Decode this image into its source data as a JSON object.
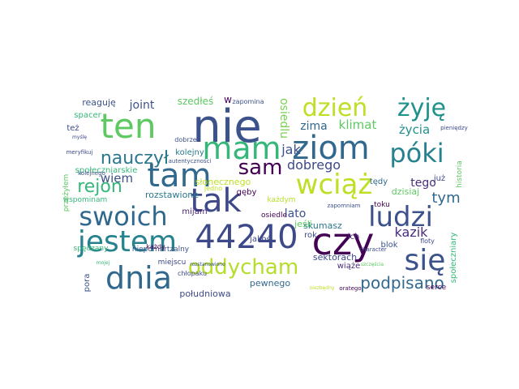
{
  "words": [
    {
      "text": "nie",
      "color": "#3b528b"
    },
    {
      "text": "ten",
      "color": "#5ec962"
    },
    {
      "text": "tam",
      "color": "#31688e"
    },
    {
      "text": "mam",
      "color": "#35b779"
    },
    {
      "text": "ziom",
      "color": "#31688e"
    },
    {
      "text": "tak",
      "color": "#3e4989"
    },
    {
      "text": "czy",
      "color": "#440154"
    },
    {
      "text": "44240",
      "color": "#3e4989"
    },
    {
      "text": "jestem",
      "color": "#26828e"
    },
    {
      "text": "dnia",
      "color": "#31688e"
    },
    {
      "text": "się",
      "color": "#3b528b"
    },
    {
      "text": "ludzi",
      "color": "#3b528b"
    },
    {
      "text": "swoich",
      "color": "#31688e"
    },
    {
      "text": "wciąż",
      "color": "#bddf26"
    },
    {
      "text": "dzień",
      "color": "#bddf26"
    },
    {
      "text": "żyję",
      "color": "#21918c"
    },
    {
      "text": "póki",
      "color": "#26828e"
    },
    {
      "text": "sam",
      "color": "#440154"
    },
    {
      "text": "oddycham",
      "color": "#b5de2b"
    },
    {
      "text": "nauczył",
      "color": "#2a788e"
    },
    {
      "text": "rejon",
      "color": "#35b779"
    },
    {
      "text": "podpisano",
      "color": "#31688e"
    },
    {
      "text": "tym",
      "color": "#31688e"
    },
    {
      "text": "kazik",
      "color": "#472d7b"
    },
    {
      "text": "dobrego",
      "color": "#3e4989"
    },
    {
      "text": "jak",
      "color": "#3b528b"
    },
    {
      "text": "klimat",
      "color": "#5ec962"
    },
    {
      "text": "zima",
      "color": "#31688e"
    },
    {
      "text": "wiem",
      "color": "#3b528b"
    },
    {
      "text": "lato",
      "color": "#3b528b"
    },
    {
      "text": "joint",
      "color": "#3b528b"
    },
    {
      "text": "życia",
      "color": "#21918c"
    },
    {
      "text": "tego",
      "color": "#472d7b"
    },
    {
      "text": "osiedlu",
      "color": "#7ad151"
    },
    {
      "text": "szedłeś",
      "color": "#5ec962"
    },
    {
      "text": "reaguję",
      "color": "#3b528b"
    },
    {
      "text": "kolejny",
      "color": "#2a788e"
    },
    {
      "text": "skumasz",
      "color": "#2a788e"
    },
    {
      "text": "sektorach",
      "color": "#3e4989"
    },
    {
      "text": "pewnego",
      "color": "#31688e"
    },
    {
      "text": "południowa",
      "color": "#3e4989"
    },
    {
      "text": "słonecznego",
      "color": "#bddf26"
    },
    {
      "text": "rozstawione",
      "color": "#2a788e"
    },
    {
      "text": "jeśli",
      "color": "#5ec962"
    },
    {
      "text": "dzisiaj",
      "color": "#5ec962"
    },
    {
      "text": "społeczniarskie",
      "color": "#35b779"
    },
    {
      "text": "społeczniary",
      "color": "#35b779"
    },
    {
      "text": "tędy",
      "color": "#31688e"
    },
    {
      "text": "już",
      "color": "#3e4989"
    },
    {
      "text": "historia",
      "color": "#5ec962"
    },
    {
      "text": "mijam",
      "color": "#482475"
    },
    {
      "text": "jakoś",
      "color": "#3e4989"
    },
    {
      "text": "rok",
      "color": "#3e4989"
    },
    {
      "text": "ich",
      "color": "#482475"
    },
    {
      "text": "blok",
      "color": "#3b528b"
    },
    {
      "text": "wiąże",
      "color": "#472d7b"
    },
    {
      "text": "pora",
      "color": "#3b528b"
    },
    {
      "text": "spacer",
      "color": "#35b779"
    },
    {
      "text": "też",
      "color": "#3e4989"
    },
    {
      "text": "wspominam",
      "color": "#35b779"
    },
    {
      "text": "przeżyłem",
      "color": "#5ec962"
    },
    {
      "text": "spędzany",
      "color": "#35b779"
    },
    {
      "text": "niepomartzalny",
      "color": "#3b528b"
    },
    {
      "text": "gęby",
      "color": "#440154"
    },
    {
      "text": "każdym",
      "color": "#b5de2b"
    },
    {
      "text": "osiedle",
      "color": "#440154"
    },
    {
      "text": "zapomina",
      "color": "#3b528b"
    },
    {
      "text": "dobrze",
      "color": "#3b528b"
    },
    {
      "text": "miejscu",
      "color": "#3e4989"
    },
    {
      "text": "toku",
      "color": "#440154"
    },
    {
      "text": "floty",
      "color": "#3e4989"
    },
    {
      "text": "serce",
      "color": "#440154"
    },
    {
      "text": "chłopaku",
      "color": "#3e4989"
    },
    {
      "text": "każdy",
      "color": "#440154"
    },
    {
      "text": "jedno",
      "color": "#bddf26"
    },
    {
      "text": "zapomniam",
      "color": "#3b528b"
    },
    {
      "text": "character",
      "color": "#3e4989"
    },
    {
      "text": "oratego",
      "color": "#440154"
    },
    {
      "text": "pieniędzy",
      "color": "#3e4989"
    },
    {
      "text": "autentyczności",
      "color": "#3b528b"
    },
    {
      "text": "kolejnego",
      "color": "#3b528b"
    },
    {
      "text": "meryfikuj",
      "color": "#3e4989"
    },
    {
      "text": "myślę",
      "color": "#3e4989"
    },
    {
      "text": "mojej",
      "color": "#35b779"
    },
    {
      "text": "szczęścia",
      "color": "#5ec962"
    },
    {
      "text": "rozstanowiono",
      "color": "#3b528b"
    },
    {
      "text": "niezbędny",
      "color": "#bddf26"
    },
    {
      "text": "w",
      "color": "#440154"
    }
  ]
}
